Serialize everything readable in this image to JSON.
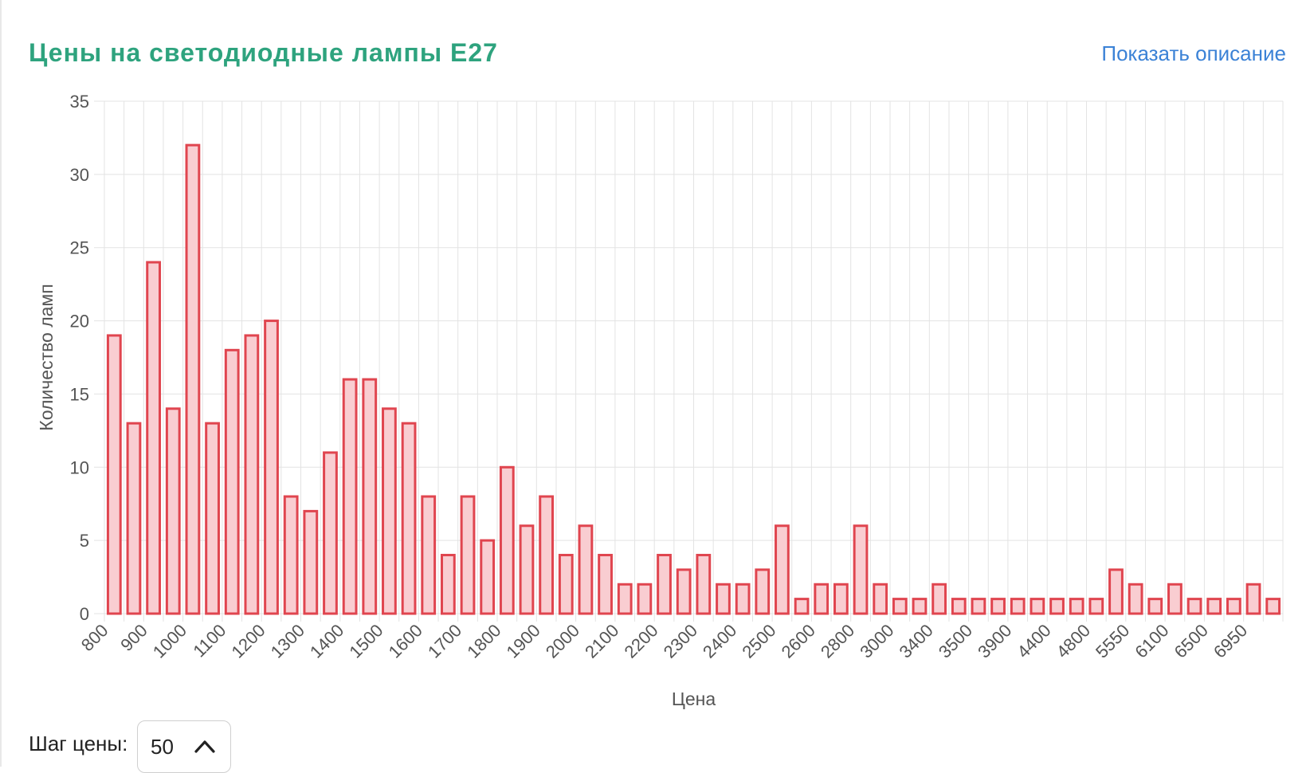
{
  "header": {
    "title": "Цены на светодиодные лампы E27",
    "show_description": "Показать описание"
  },
  "controls": {
    "step_label": "Шаг цены:",
    "step_value": "50",
    "step_icon": "chevron-up-icon"
  },
  "colors": {
    "bar_fill": "#f9cdd1",
    "bar_stroke": "#e0454f",
    "title": "#2ea37e",
    "link": "#3b82d6",
    "grid": "#e3e3e3"
  },
  "chart_data": {
    "type": "bar",
    "title": "Цены на светодиодные лампы E27",
    "xlabel": "Цена",
    "ylabel": "Количество ламп",
    "ylim": [
      0,
      35
    ],
    "yticks": [
      0,
      5,
      10,
      15,
      20,
      25,
      30,
      35
    ],
    "grid": true,
    "tick_labels": [
      "800",
      "900",
      "1000",
      "1100",
      "1200",
      "1300",
      "1400",
      "1500",
      "1600",
      "1700",
      "1800",
      "1900",
      "2000",
      "2100",
      "2200",
      "2300",
      "2400",
      "2500",
      "2600",
      "2800",
      "3000",
      "3400",
      "3500",
      "3900",
      "4400",
      "4800",
      "5550",
      "6100",
      "6500",
      "6950"
    ],
    "values": [
      19,
      13,
      24,
      14,
      32,
      13,
      18,
      19,
      20,
      8,
      7,
      11,
      16,
      16,
      14,
      13,
      8,
      4,
      8,
      5,
      10,
      6,
      8,
      4,
      6,
      4,
      2,
      2,
      4,
      3,
      4,
      2,
      2,
      3,
      6,
      1,
      2,
      2,
      6,
      2,
      1,
      1,
      2,
      1,
      1,
      1,
      1,
      1,
      1,
      1,
      1,
      3,
      2,
      1,
      2,
      1,
      1,
      1,
      2,
      1
    ]
  }
}
